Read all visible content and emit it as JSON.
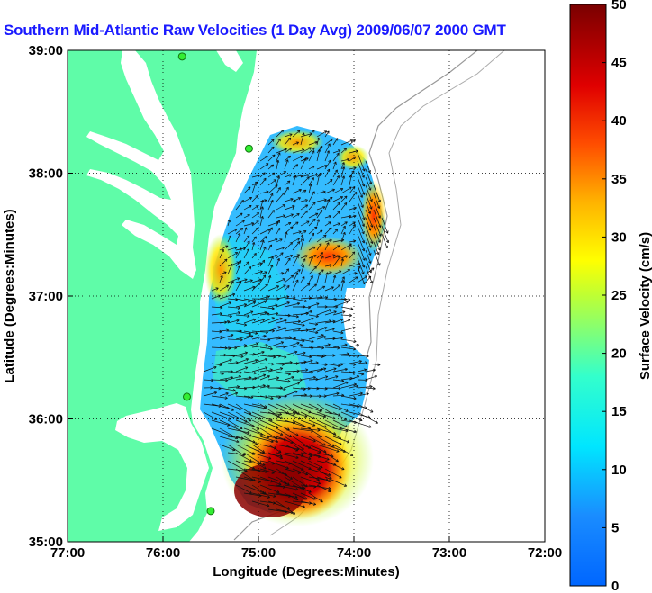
{
  "title": "Southern Mid-Atlantic Raw Velocities (1 Day Avg) 2009/06/07 2000 GMT",
  "xlabel": "Longitude (Degrees:Minutes)",
  "ylabel": "Latitude (Degrees:Minutes)",
  "x_ticks": [
    "77:00",
    "76:00",
    "75:00",
    "74:00",
    "73:00",
    "72:00"
  ],
  "y_ticks": [
    "39:00",
    "38:00",
    "37:00",
    "36:00",
    "35:00"
  ],
  "colorbar": {
    "label": "Surface Velocity (cm/s)",
    "min": 0,
    "max": 50,
    "ticks": [
      "0",
      "5",
      "10",
      "15",
      "20",
      "25",
      "30",
      "35",
      "40",
      "45",
      "50"
    ]
  },
  "colors": {
    "land": "#5ffca8",
    "water": "#ffffff",
    "title": "#1a1aff",
    "stations": "#33ee33"
  },
  "stations": [
    {
      "lon": -75.8,
      "lat": 38.95
    },
    {
      "lon": -75.1,
      "lat": 38.2
    },
    {
      "lon": -75.75,
      "lat": 36.18
    },
    {
      "lon": -75.5,
      "lat": 35.25
    }
  ]
}
